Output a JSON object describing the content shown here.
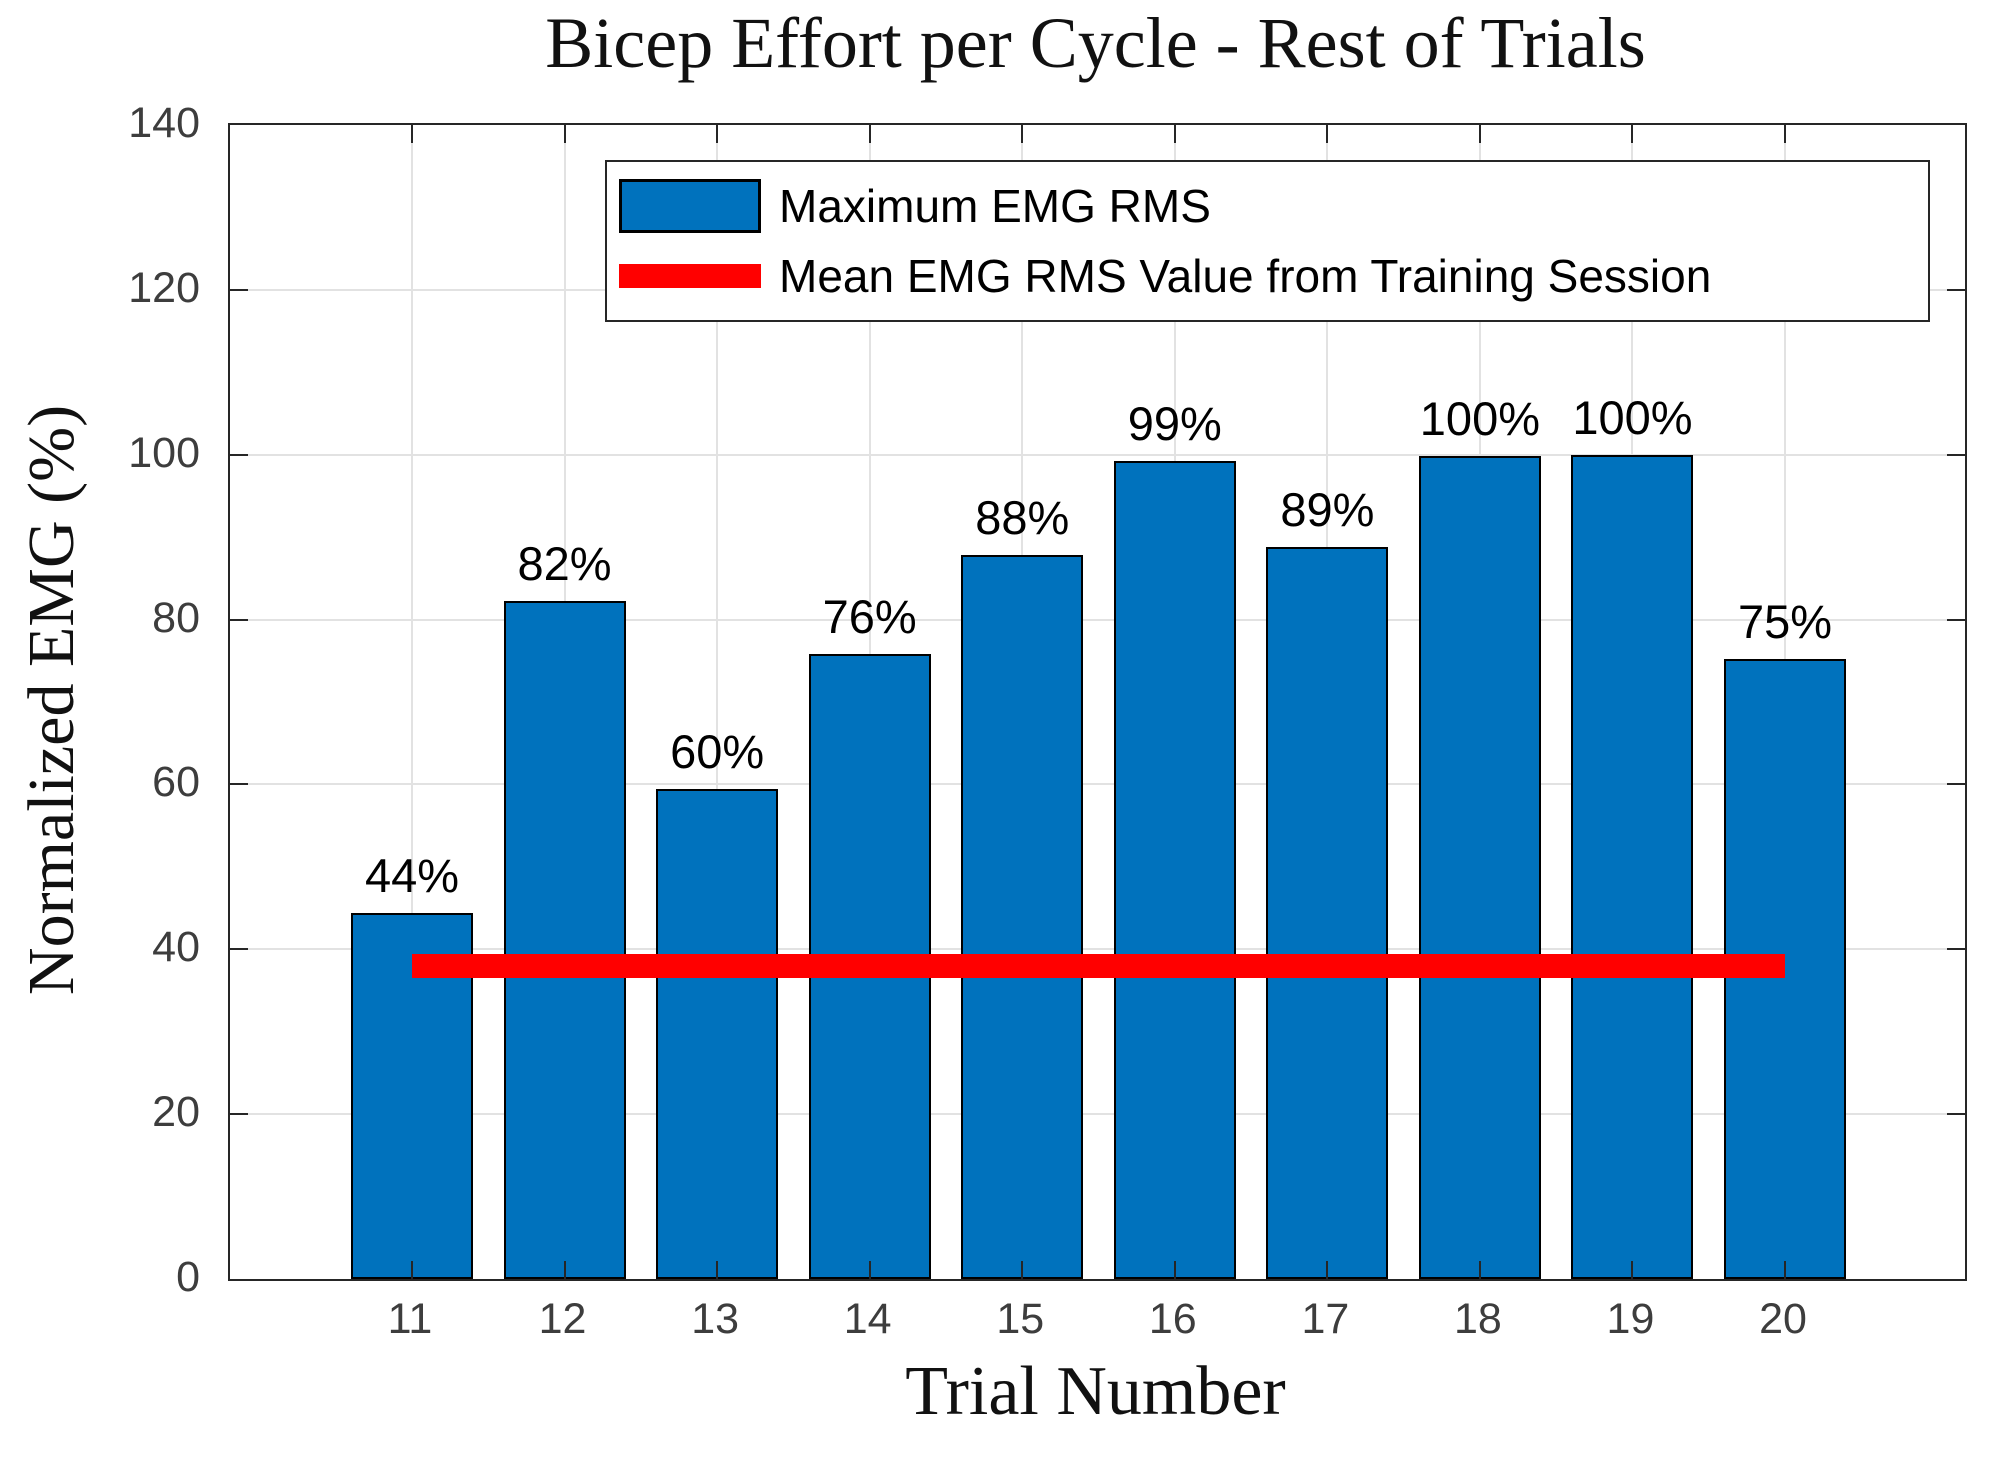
{
  "chart_data": {
    "type": "bar",
    "title": "Bicep Effort per Cycle - Rest of Trials",
    "xlabel": "Trial Number",
    "ylabel": "Normalized EMG (%)",
    "categories": [
      11,
      12,
      13,
      14,
      15,
      16,
      17,
      18,
      19,
      20
    ],
    "values": [
      44.4,
      82.2,
      59.5,
      75.8,
      87.8,
      99.2,
      88.8,
      99.8,
      100,
      75.2
    ],
    "bar_labels": [
      "44%",
      "82%",
      "60%",
      "76%",
      "88%",
      "99%",
      "89%",
      "100%",
      "100%",
      "75%"
    ],
    "mean_line": {
      "value": 38,
      "x_start": 11,
      "x_end": 20,
      "label": "Mean EMG RMS Value from Training Session"
    },
    "legend": [
      {
        "label": "Maximum EMG RMS",
        "swatch": "bar",
        "color": "#0072BD"
      },
      {
        "label": "Mean EMG RMS Value from Training Session",
        "swatch": "line",
        "color": "#FF0000"
      }
    ],
    "ylim": [
      0,
      140
    ],
    "yticks": [
      0,
      20,
      40,
      60,
      80,
      100,
      120,
      140
    ],
    "xticks": [
      11,
      12,
      13,
      14,
      15,
      16,
      17,
      18,
      19,
      20
    ],
    "grid": true,
    "legend_position": "top-left",
    "colors": {
      "bar_fill": "#0072BD",
      "bar_edge": "#000000",
      "mean_line": "#FF0000",
      "grid": "#E2E2E2",
      "axis": "#262626",
      "tick_text": "#3D3D3D"
    }
  }
}
